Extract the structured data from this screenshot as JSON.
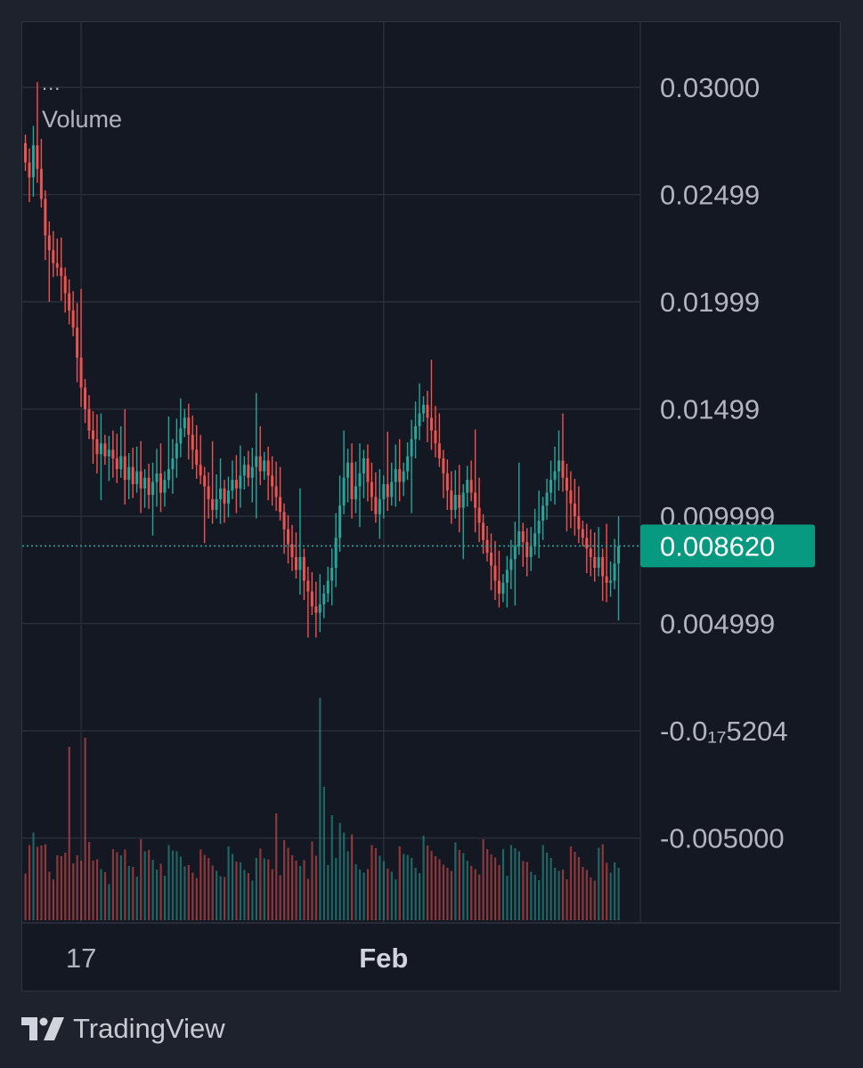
{
  "legend": {
    "menu": "...",
    "study_label": "Volume"
  },
  "branding": {
    "logo_icon": "tradingview-logo-icon",
    "name": "TradingView"
  },
  "colors": {
    "background": "#141823",
    "up": "#26a69a",
    "down": "#ef5350",
    "grid": "#2a2e39",
    "axis_text": "#b2b5be",
    "last_price_badge": "#089981"
  },
  "chart_data": {
    "type": "candlestick",
    "price_axis": {
      "ticks": [
        {
          "label": "0.03000",
          "value": 0.03
        },
        {
          "label": "0.02499",
          "value": 0.025
        },
        {
          "label": "0.01999",
          "value": 0.02
        },
        {
          "label": "0.01499",
          "value": 0.015
        },
        {
          "label": "0.009999",
          "value": 0.01
        },
        {
          "label": "0.004999",
          "value": 0.005
        },
        {
          "label": "-0.0₁₇5204",
          "value": 0.0
        },
        {
          "label": "-0.005000",
          "value": -0.005
        }
      ],
      "range": [
        -0.0068,
        0.0315
      ]
    },
    "time_axis": {
      "labels": [
        {
          "label": "17",
          "index": 14,
          "bold": false
        },
        {
          "label": "Feb",
          "index": 90,
          "bold": true
        }
      ]
    },
    "last_price": {
      "label": "0.008620",
      "value": 0.00862
    },
    "close": [
      0.0265,
      0.0258,
      0.0273,
      0.0262,
      0.0248,
      0.0231,
      0.0224,
      0.0218,
      0.0216,
      0.0212,
      0.0204,
      0.0196,
      0.0188,
      0.0174,
      0.016,
      0.015,
      0.014,
      0.0136,
      0.0129,
      0.0134,
      0.0128,
      0.0131,
      0.0127,
      0.0122,
      0.0128,
      0.0117,
      0.0123,
      0.0115,
      0.0121,
      0.0113,
      0.0118,
      0.011,
      0.0116,
      0.012,
      0.0111,
      0.0117,
      0.0122,
      0.0127,
      0.0134,
      0.0141,
      0.0146,
      0.0138,
      0.0131,
      0.0124,
      0.0119,
      0.0114,
      0.0108,
      0.0103,
      0.0108,
      0.0113,
      0.0106,
      0.0112,
      0.0117,
      0.0113,
      0.0119,
      0.0124,
      0.0118,
      0.0123,
      0.0128,
      0.0121,
      0.0126,
      0.0119,
      0.0114,
      0.0109,
      0.0102,
      0.0094,
      0.0087,
      0.0081,
      0.0075,
      0.0081,
      0.007,
      0.0065,
      0.0058,
      0.0055,
      0.0059,
      0.0064,
      0.007,
      0.0076,
      0.009,
      0.0105,
      0.0118,
      0.0125,
      0.0108,
      0.0114,
      0.012,
      0.0127,
      0.0116,
      0.0109,
      0.0101,
      0.0108,
      0.0115,
      0.0109,
      0.0116,
      0.0122,
      0.0116,
      0.0121,
      0.0128,
      0.0136,
      0.0142,
      0.0148,
      0.0152,
      0.0146,
      0.014,
      0.0134,
      0.0127,
      0.012,
      0.0112,
      0.0103,
      0.011,
      0.0104,
      0.0111,
      0.0117,
      0.0111,
      0.0104,
      0.0097,
      0.0089,
      0.0083,
      0.0077,
      0.007,
      0.0064,
      0.0069,
      0.0075,
      0.008,
      0.0086,
      0.0093,
      0.0088,
      0.0081,
      0.0086,
      0.0092,
      0.0098,
      0.0105,
      0.0111,
      0.0117,
      0.0121,
      0.0126,
      0.0118,
      0.0112,
      0.0106,
      0.01,
      0.0094,
      0.009,
      0.0085,
      0.0081,
      0.0076,
      0.0081,
      0.0072,
      0.0069,
      0.007,
      0.0078,
      0.0086
    ]
  }
}
